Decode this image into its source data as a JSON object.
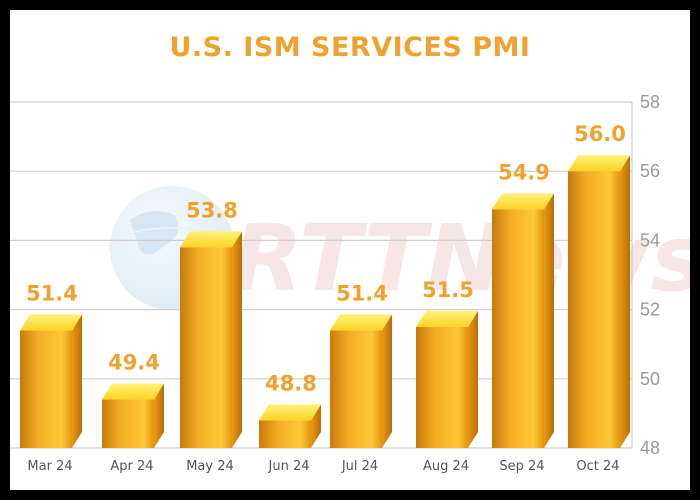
{
  "chart_data": {
    "type": "bar",
    "title": "U.S. ISM SERVICES PMI",
    "categories": [
      "Mar 24",
      "Apr 24",
      "May 24",
      "Jun 24",
      "Jul 24",
      "Aug 24",
      "Sep 24",
      "Oct 24"
    ],
    "values": [
      51.4,
      49.4,
      53.8,
      48.8,
      51.4,
      51.5,
      54.9,
      56.0
    ],
    "data_labels": [
      "51.4",
      "49.4",
      "53.8",
      "48.8",
      "51.4",
      "51.5",
      "54.9",
      "56.0"
    ],
    "xlabel": "",
    "ylabel": "",
    "ylim": [
      48,
      58
    ],
    "yticks": [
      48,
      50,
      52,
      54,
      56,
      58
    ],
    "y_axis_side": "right",
    "grid": true,
    "legend": "none"
  },
  "watermark": {
    "text": "RTTNews",
    "icon": "globe-icon"
  },
  "colors": {
    "title": "#f0a22e",
    "data_label": "#f0a22e",
    "bar_dark": "#c97a0c",
    "bar_mid": "#f2ac24",
    "bar_light": "#ffd84a",
    "bar_top": "#fff04a",
    "gridline": "#cfcfcf"
  }
}
